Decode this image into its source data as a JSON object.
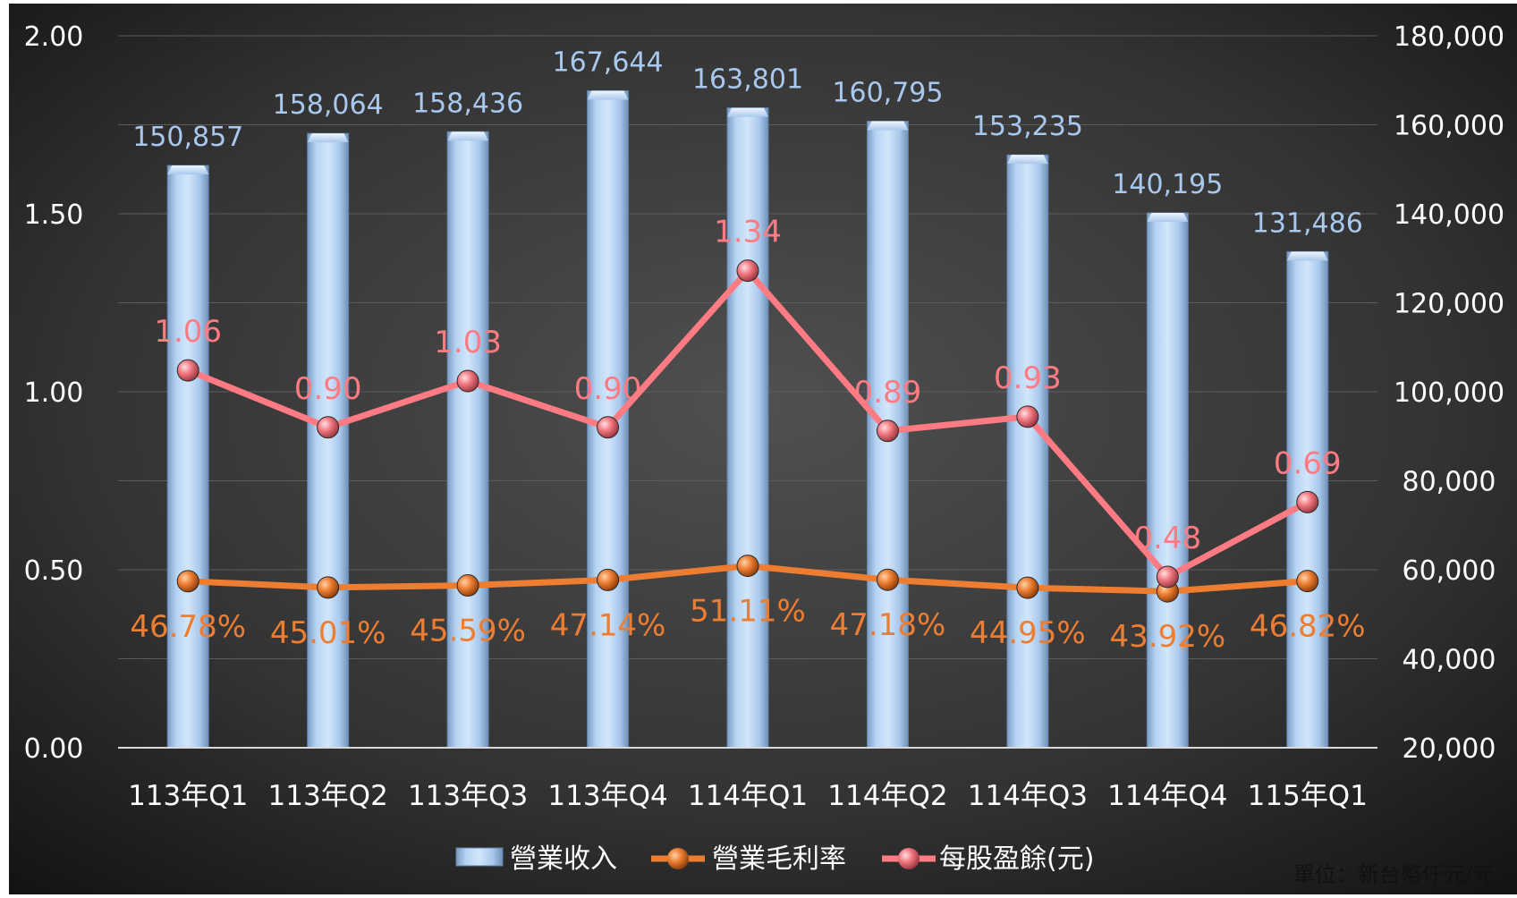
{
  "unit_note": "單位：新台幣仟元/元",
  "colors": {
    "background_outer": "#101010",
    "background_inner": "#4a4a4a",
    "bar": "#a8c8ec",
    "bar_label": "#a9c8ee",
    "gross_margin_line": "#ed7d31",
    "gross_margin_label": "#ed7d31",
    "eps_line": "#ff7b84",
    "eps_label": "#ff7b84",
    "axis_text": "#ffffff",
    "legend_text": "#ffffff"
  },
  "chart_data": {
    "type": "bar",
    "categories": [
      "113年Q1",
      "113年Q2",
      "113年Q3",
      "113年Q4",
      "114年Q1",
      "114年Q2",
      "114年Q3",
      "114年Q4",
      "115年Q1"
    ],
    "series": [
      {
        "name": "營業收入",
        "type": "bar",
        "axis": "right",
        "values": [
          150857,
          158064,
          158436,
          167644,
          163801,
          160795,
          153235,
          140195,
          131486
        ],
        "labels": [
          "150,857",
          "158,064",
          "158,436",
          "167,644",
          "163,801",
          "160,795",
          "153,235",
          "140,195",
          "131,486"
        ]
      },
      {
        "name": "營業毛利率",
        "type": "line",
        "axis": "left",
        "values": [
          0.4678,
          0.4501,
          0.4559,
          0.4714,
          0.5111,
          0.4718,
          0.4495,
          0.4392,
          0.4682
        ],
        "labels": [
          "46.78%",
          "45.01%",
          "45.59%",
          "47.14%",
          "51.11%",
          "47.18%",
          "44.95%",
          "43.92%",
          "46.82%"
        ]
      },
      {
        "name": "每股盈餘(元)",
        "type": "line",
        "axis": "left",
        "values": [
          1.06,
          0.9,
          1.03,
          0.9,
          1.34,
          0.89,
          0.93,
          0.48,
          0.69
        ],
        "labels": [
          "1.06",
          "0.90",
          "1.03",
          "0.90",
          "1.34",
          "0.89",
          "0.93",
          "0.48",
          "0.69"
        ]
      }
    ],
    "y_left": {
      "lim": [
        0,
        2
      ],
      "ticks": [
        0,
        0.5,
        1.0,
        1.5,
        2.0
      ],
      "tick_labels": [
        "0.00",
        "0.50",
        "1.00",
        "1.50",
        "2.00"
      ]
    },
    "y_right": {
      "lim": [
        20000,
        180000
      ],
      "ticks": [
        20000,
        40000,
        60000,
        80000,
        100000,
        120000,
        140000,
        160000,
        180000
      ],
      "tick_labels": [
        "20,000",
        "40,000",
        "60,000",
        "80,000",
        "100,000",
        "120,000",
        "140,000",
        "160,000",
        "180,000"
      ]
    },
    "grid": true,
    "legend_position": "bottom"
  }
}
